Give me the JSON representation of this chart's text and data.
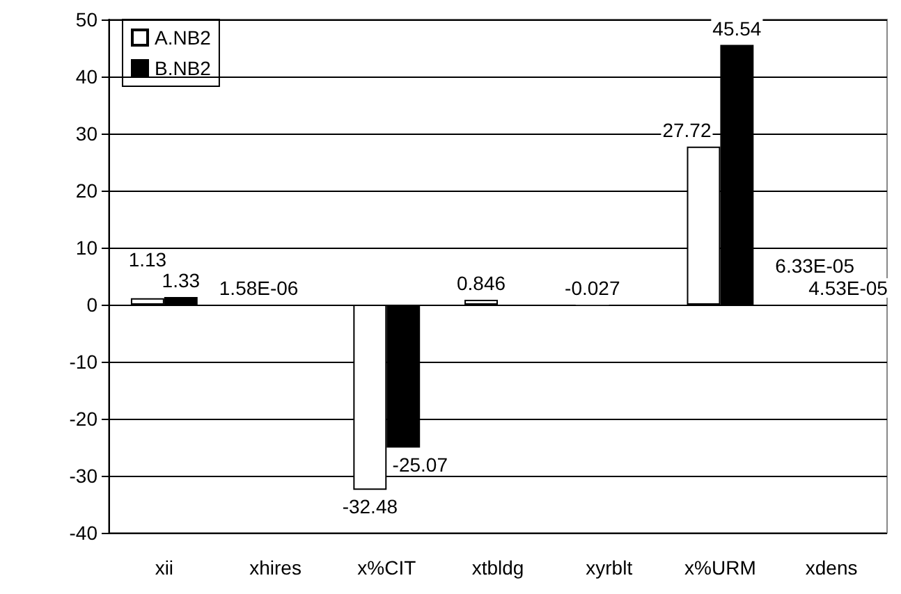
{
  "chart_data": {
    "type": "bar",
    "categories": [
      "xii",
      "xhires",
      "x%CIT",
      "xtbldg",
      "xyrblt",
      "x%URM",
      "xdens"
    ],
    "series": [
      {
        "name": "A.NB2",
        "color": "#ffffff",
        "values": [
          1.13,
          1.58e-06,
          -32.48,
          0.846,
          -0.027,
          27.72,
          6.33e-05
        ],
        "value_labels": [
          "1.13",
          "1.58E-06",
          "-32.48",
          "0.846",
          "-0.027",
          "27.72",
          "6.33E-05"
        ]
      },
      {
        "name": "B.NB2",
        "color": "#000000",
        "values": [
          1.33,
          null,
          -25.07,
          null,
          null,
          45.54,
          4.53e-05
        ],
        "value_labels": [
          "1.33",
          null,
          "-25.07",
          null,
          null,
          "45.54",
          "4.53E-05"
        ]
      }
    ],
    "ylim": [
      -40,
      50
    ],
    "yticks": [
      -40,
      -30,
      -20,
      -10,
      0,
      10,
      20,
      30,
      40,
      50
    ],
    "grid": "y",
    "legend": "top left"
  }
}
